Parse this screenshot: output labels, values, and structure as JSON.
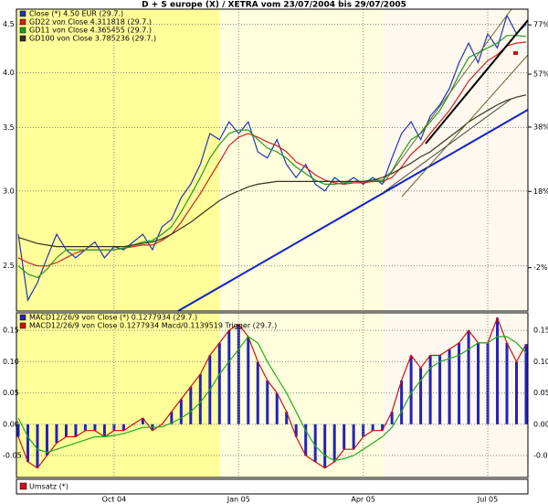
{
  "chart_data": [
    {
      "type": "line",
      "title": "D + S europe (X) / XETRA vom 23/07/2004 bis 29/07/2005",
      "log_scale": true,
      "categories": [
        null,
        null,
        null,
        null,
        null,
        null,
        null,
        null,
        null,
        null,
        "Oct 04",
        null,
        null,
        null,
        null,
        null,
        null,
        null,
        null,
        null,
        null,
        null,
        null,
        "Jan 05",
        null,
        null,
        null,
        null,
        null,
        null,
        null,
        null,
        null,
        null,
        null,
        null,
        "Apr 05",
        null,
        null,
        null,
        null,
        null,
        null,
        null,
        null,
        null,
        null,
        null,
        null,
        "Jul 05",
        null,
        null,
        null,
        null
      ],
      "ylim": [
        2.24,
        4.67
      ],
      "yticks": [
        4.5,
        {
          "value": 4.0,
          "label": "4.0"
        },
        3.5,
        {
          "value": 3.0,
          "label": "3.0"
        },
        2.5
      ],
      "y2lim": [
        -11.8,
        83.9
      ],
      "y2ticks": [
        {
          "value": 77,
          "label": "77%"
        },
        {
          "value": 57,
          "label": "57%"
        },
        {
          "value": 38,
          "label": "38%"
        },
        {
          "value": 18,
          "label": "18%"
        },
        {
          "value": -2,
          "label": "-2%"
        }
      ],
      "series": [
        {
          "name": "Close (*) 4.50 EUR (29.7.)",
          "color": "#2233bb",
          "values": [
            2.7,
            2.3,
            2.4,
            2.55,
            2.7,
            2.6,
            2.55,
            2.6,
            2.65,
            2.55,
            2.62,
            2.6,
            2.65,
            2.7,
            2.6,
            2.75,
            2.8,
            2.95,
            3.05,
            3.2,
            3.45,
            3.4,
            3.55,
            3.45,
            3.55,
            3.3,
            3.25,
            3.4,
            3.2,
            3.1,
            3.2,
            3.05,
            3.0,
            3.1,
            3.05,
            3.1,
            3.05,
            3.1,
            3.05,
            3.25,
            3.45,
            3.55,
            3.4,
            3.6,
            3.7,
            3.85,
            4.1,
            4.3,
            4.1,
            4.4,
            4.25,
            4.6,
            4.4,
            4.5
          ]
        },
        {
          "name": "GD22 von Close 4.311818 (29.7.)",
          "color": "#cc2222",
          "values": [
            2.55,
            2.52,
            2.5,
            2.5,
            2.52,
            2.55,
            2.58,
            2.6,
            2.6,
            2.6,
            2.6,
            2.61,
            2.62,
            2.63,
            2.63,
            2.66,
            2.7,
            2.78,
            2.88,
            2.98,
            3.1,
            3.22,
            3.35,
            3.42,
            3.45,
            3.42,
            3.38,
            3.35,
            3.3,
            3.22,
            3.18,
            3.12,
            3.08,
            3.06,
            3.05,
            3.06,
            3.06,
            3.07,
            3.07,
            3.1,
            3.18,
            3.28,
            3.35,
            3.45,
            3.55,
            3.65,
            3.78,
            3.92,
            4.02,
            4.12,
            4.18,
            4.27,
            4.3,
            4.31
          ]
        },
        {
          "name": "GD11 von Close 4.365455 (29.7.)",
          "color": "#229922",
          "values": [
            2.5,
            2.45,
            2.43,
            2.48,
            2.55,
            2.6,
            2.6,
            2.6,
            2.6,
            2.6,
            2.6,
            2.61,
            2.63,
            2.65,
            2.66,
            2.7,
            2.75,
            2.85,
            2.97,
            3.1,
            3.25,
            3.36,
            3.45,
            3.48,
            3.48,
            3.4,
            3.33,
            3.3,
            3.25,
            3.18,
            3.13,
            3.08,
            3.05,
            3.05,
            3.06,
            3.07,
            3.07,
            3.08,
            3.08,
            3.15,
            3.28,
            3.4,
            3.45,
            3.55,
            3.65,
            3.8,
            3.98,
            4.15,
            4.2,
            4.25,
            4.3,
            4.38,
            4.38,
            4.37
          ]
        },
        {
          "name": "GD100 von Close 3.785236 (29.7.)",
          "color": "#333322",
          "values": [
            2.68,
            2.66,
            2.64,
            2.63,
            2.62,
            2.62,
            2.62,
            2.62,
            2.62,
            2.62,
            2.62,
            2.62,
            2.63,
            2.64,
            2.65,
            2.67,
            2.7,
            2.74,
            2.78,
            2.83,
            2.88,
            2.93,
            2.97,
            3.0,
            3.03,
            3.05,
            3.06,
            3.07,
            3.07,
            3.07,
            3.07,
            3.07,
            3.07,
            3.07,
            3.07,
            3.07,
            3.07,
            3.08,
            3.1,
            3.13,
            3.17,
            3.21,
            3.26,
            3.3,
            3.36,
            3.42,
            3.48,
            3.55,
            3.6,
            3.65,
            3.7,
            3.74,
            3.77,
            3.79
          ]
        }
      ]
    },
    {
      "type": "line",
      "ylim": [
        -0.085,
        0.178
      ],
      "yticks": [
        0.15,
        {
          "value": 0.1,
          "label": "0.10"
        },
        0.05,
        {
          "value": 0,
          "label": "0.00"
        },
        -0.05
      ],
      "series": [
        {
          "name": "MACD12/26/9 von Close (*) 0.1277934 (29.7.)",
          "type": "bar",
          "color": "#2222bb",
          "values": [
            -0.02,
            -0.06,
            -0.07,
            -0.05,
            -0.03,
            -0.02,
            -0.02,
            -0.01,
            -0.01,
            -0.02,
            -0.01,
            -0.01,
            0.0,
            0.01,
            -0.01,
            0.0,
            0.02,
            0.04,
            0.06,
            0.08,
            0.11,
            0.13,
            0.15,
            0.16,
            0.14,
            0.1,
            0.07,
            0.05,
            0.02,
            -0.02,
            -0.05,
            -0.06,
            -0.07,
            -0.06,
            -0.04,
            -0.04,
            -0.02,
            -0.01,
            -0.01,
            0.02,
            0.07,
            0.11,
            0.09,
            0.11,
            0.11,
            0.12,
            0.13,
            0.15,
            0.13,
            0.13,
            0.17,
            0.13,
            0.1,
            0.128
          ]
        },
        {
          "name": "MACD12/26/9 von Close 0.1277934 Macd/0.1139519 Trigger (29.7.)",
          "type": "line",
          "color": "#cc1111",
          "values": [
            -0.02,
            -0.06,
            -0.07,
            -0.05,
            -0.03,
            -0.02,
            -0.02,
            -0.01,
            -0.01,
            -0.02,
            -0.01,
            -0.01,
            0.0,
            0.01,
            -0.01,
            0.0,
            0.02,
            0.04,
            0.06,
            0.08,
            0.11,
            0.13,
            0.15,
            0.16,
            0.14,
            0.1,
            0.07,
            0.05,
            0.02,
            -0.02,
            -0.05,
            -0.06,
            -0.07,
            -0.06,
            -0.04,
            -0.04,
            -0.02,
            -0.01,
            -0.01,
            0.02,
            0.07,
            0.11,
            0.09,
            0.11,
            0.11,
            0.12,
            0.13,
            0.15,
            0.13,
            0.13,
            0.17,
            0.13,
            0.1,
            0.128
          ]
        },
        {
          "type": "line",
          "color": "#22aa22",
          "values": [
            0.01,
            -0.02,
            -0.04,
            -0.045,
            -0.04,
            -0.035,
            -0.03,
            -0.025,
            -0.02,
            -0.02,
            -0.018,
            -0.015,
            -0.01,
            -0.005,
            -0.005,
            -0.004,
            0.002,
            0.01,
            0.02,
            0.035,
            0.055,
            0.08,
            0.1,
            0.12,
            0.14,
            0.13,
            0.1,
            0.075,
            0.05,
            0.02,
            -0.01,
            -0.035,
            -0.05,
            -0.058,
            -0.055,
            -0.05,
            -0.04,
            -0.03,
            -0.02,
            -0.005,
            0.02,
            0.05,
            0.07,
            0.09,
            0.1,
            0.105,
            0.11,
            0.12,
            0.13,
            0.13,
            0.14,
            0.14,
            0.13,
            0.114
          ]
        }
      ]
    },
    {
      "type": "bar",
      "series": [
        {
          "name": "Umsatz (*)",
          "color": "#cc1122"
        }
      ]
    }
  ]
}
